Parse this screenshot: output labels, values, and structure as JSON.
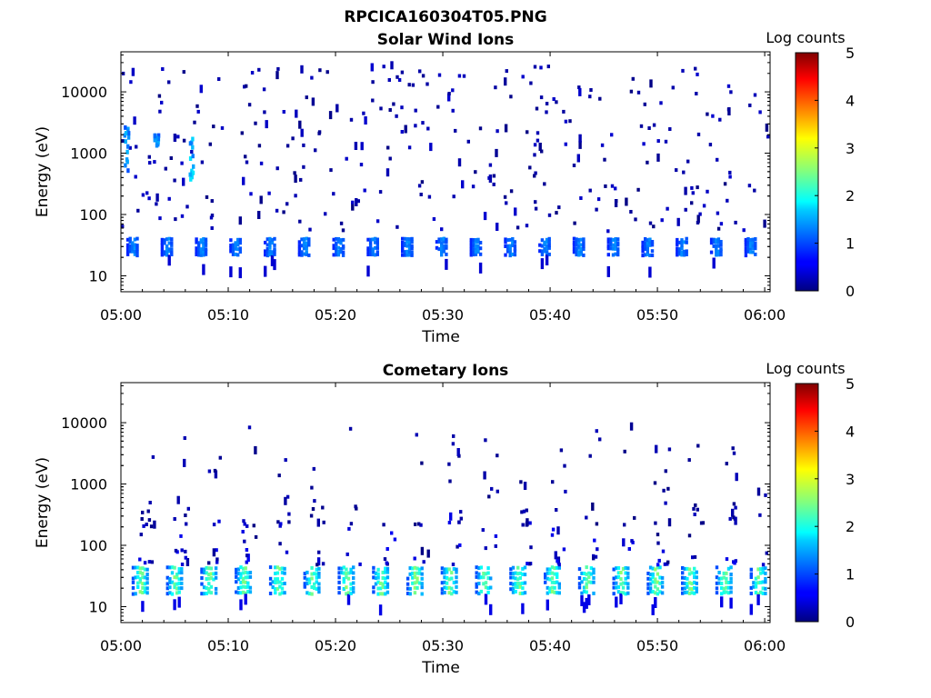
{
  "figure": {
    "title": "RPCICA160304T05.PNG"
  },
  "chart_data": [
    {
      "type": "heatmap",
      "title": "Solar Wind Ions",
      "xlabel": "Time",
      "ylabel": "Energy (eV)",
      "x_range": [
        "05:00",
        "06:00"
      ],
      "x_ticks": [
        "05:00",
        "05:10",
        "05:20",
        "05:30",
        "05:40",
        "05:50",
        "06:00"
      ],
      "y_scale": "log",
      "y_range": [
        5.5,
        45000
      ],
      "y_ticks": [
        10,
        100,
        1000,
        10000
      ],
      "y_tick_labels": [
        "10",
        "100",
        "1000",
        "10000"
      ],
      "colorbar": {
        "label": "Log counts",
        "range": [
          0,
          5
        ],
        "ticks": [
          "0",
          "1",
          "2",
          "3",
          "4",
          "5"
        ],
        "colormap": "jet"
      },
      "grid": false,
      "features": [
        {
          "description": "periodic solar wind proton band",
          "energy_range_eV": [
            20,
            40
          ],
          "period_min": 3.2,
          "start_min": 0.5,
          "burst_width_min": 1.2,
          "log_counts": [
            0.8,
            1.5
          ]
        },
        {
          "description": "sparse isolated single counts",
          "energy_range_eV": [
            50,
            25000
          ],
          "log_counts": [
            0,
            0.4
          ]
        },
        {
          "description": "enhanced burst",
          "time_min": 0.2,
          "energy_range_eV": [
            400,
            2500
          ],
          "log_counts": [
            1.0,
            1.6
          ]
        },
        {
          "description": "enhanced burst",
          "time_min": 6.3,
          "energy_range_eV": [
            300,
            1600
          ],
          "log_counts": [
            1.2,
            1.8
          ]
        },
        {
          "description": "enhanced burst",
          "time_min": 3.0,
          "energy_range_eV": [
            1200,
            1800
          ],
          "log_counts": [
            1.0,
            1.5
          ]
        }
      ]
    },
    {
      "type": "heatmap",
      "title": "Cometary Ions",
      "xlabel": "Time",
      "ylabel": "Energy (eV)",
      "x_range": [
        "05:00",
        "06:00"
      ],
      "x_ticks": [
        "05:00",
        "05:10",
        "05:20",
        "05:30",
        "05:40",
        "05:50",
        "06:00"
      ],
      "y_scale": "log",
      "y_range": [
        5.5,
        45000
      ],
      "y_ticks": [
        10,
        100,
        1000,
        10000
      ],
      "y_tick_labels": [
        "10",
        "100",
        "1000",
        "10000"
      ],
      "colorbar": {
        "label": "Log counts",
        "range": [
          0,
          5
        ],
        "ticks": [
          "0",
          "1",
          "2",
          "3",
          "4",
          "5"
        ],
        "colormap": "jet"
      },
      "grid": false,
      "features": [
        {
          "description": "periodic cometary ion band",
          "energy_range_eV": [
            15,
            45
          ],
          "period_min": 3.2,
          "start_min": 1.0,
          "burst_width_min": 1.6,
          "log_counts": [
            1.0,
            2.9
          ]
        },
        {
          "description": "tails toward higher energy",
          "energy_range_eV": [
            45,
            300
          ],
          "log_counts": [
            0,
            0.6
          ]
        },
        {
          "description": "isolated high-energy counts",
          "energy_range_eV": [
            200,
            8000
          ],
          "log_counts": [
            0,
            0.3
          ]
        }
      ]
    }
  ]
}
